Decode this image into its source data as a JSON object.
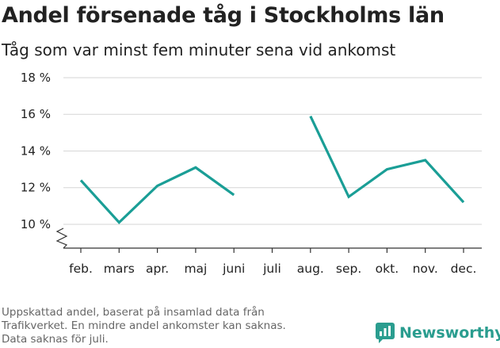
{
  "header": {
    "title": "Andel försenade tåg i Stockholms län",
    "subtitle": "Tåg som var minst fem minuter sena vid ankomst"
  },
  "footnote": {
    "lines": [
      "Uppskattad andel, baserat på insamlad data från",
      "Trafikverket. En mindre andel ankomster kan saknas.",
      "Data saknas för juli."
    ]
  },
  "brand": {
    "name": "Newsworthy",
    "icon": "newsworthy-logo-icon",
    "color": "#2a9d8f"
  },
  "chart_data": {
    "type": "line",
    "categories": [
      "feb.",
      "mars",
      "apr.",
      "maj",
      "juni",
      "juli",
      "aug.",
      "sep.",
      "okt.",
      "nov.",
      "dec."
    ],
    "series": [
      {
        "values": [
          12.4,
          10.1,
          12.1,
          13.1,
          11.6,
          null,
          15.9,
          11.5,
          13.0,
          13.5,
          11.2
        ]
      }
    ],
    "y_ticks": [
      10,
      12,
      14,
      16,
      18
    ],
    "y_tick_labels": [
      "10 %",
      "12 %",
      "14 %",
      "16 %",
      "18 %"
    ],
    "ylim": [
      8.7,
      18
    ],
    "y_axis_break": true,
    "grid": true,
    "line_color": "#1a9e96",
    "xlabel": "",
    "ylabel": ""
  }
}
